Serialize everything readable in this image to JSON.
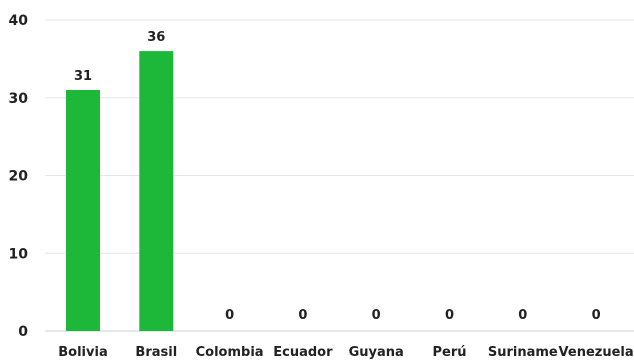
{
  "chart_data": {
    "type": "bar",
    "categories": [
      "Bolivia",
      "Brasil",
      "Colombia",
      "Ecuador",
      "Guyana",
      "Perú",
      "Suriname",
      "Venezuela"
    ],
    "values": [
      31,
      36,
      0,
      0,
      0,
      0,
      0,
      0
    ],
    "data_labels": [
      "31",
      "36",
      "0",
      "0",
      "0",
      "0",
      "0",
      "0"
    ],
    "ylim": [
      0,
      40
    ],
    "yticks": [
      0,
      10,
      20,
      30,
      40
    ],
    "ytick_labels": [
      "0",
      "10",
      "20",
      "30",
      "40"
    ],
    "grid": true,
    "bar_color": "#1db83a",
    "title": "",
    "xlabel": "",
    "ylabel": ""
  }
}
